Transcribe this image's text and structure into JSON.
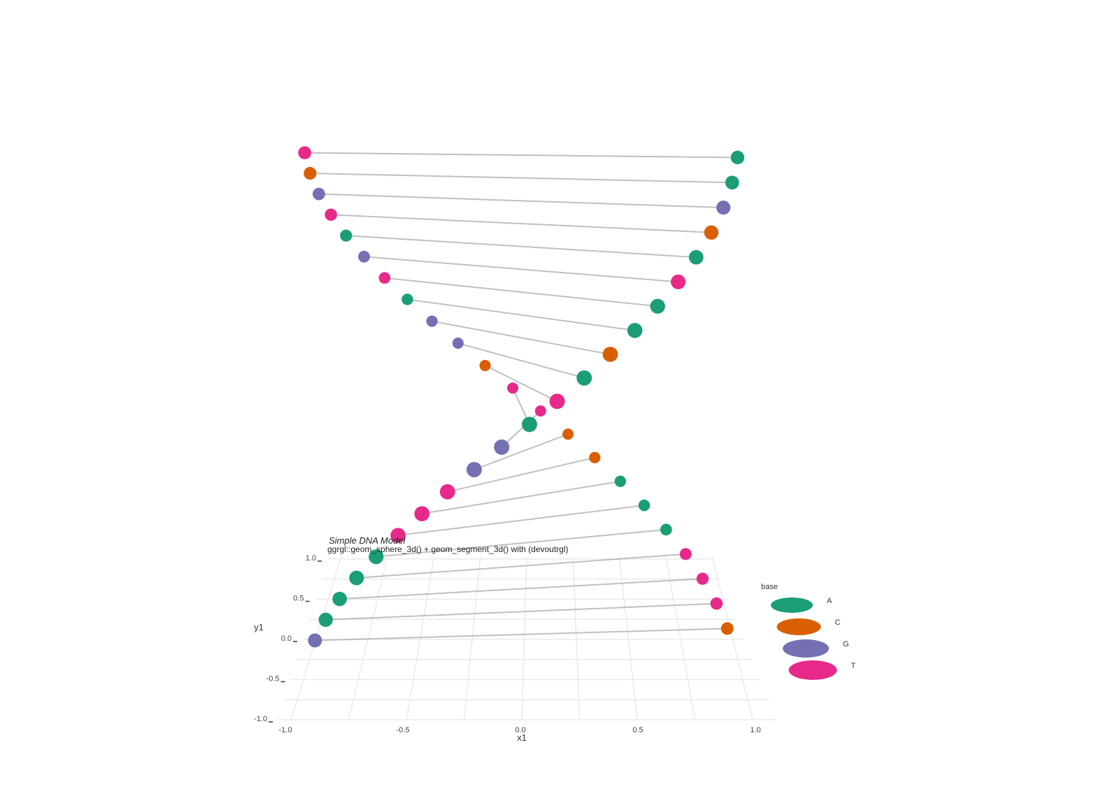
{
  "chart_data": {
    "type": "scatter",
    "title": "Simple DNA Model",
    "subtitle": "ggrgl::geom_sphere_3d() + geom_segment_3d() with (devoutrgl)",
    "xlabel": "x1",
    "ylabel": "y1",
    "xlim": [
      -1.0,
      1.0
    ],
    "ylim": [
      -1.0,
      1.0
    ],
    "x_ticks": [
      "-1.0",
      "-0.5",
      "0.0",
      "0.5",
      "1.0"
    ],
    "y_ticks": [
      "-1.0",
      "-0.5",
      "0.0",
      "0.5",
      "1.0"
    ],
    "grid": true,
    "legend": {
      "title": "base",
      "position": "right",
      "entries": [
        "A",
        "C",
        "G",
        "T"
      ]
    },
    "colors": {
      "A": "#1b9e77",
      "C": "#d95f02",
      "G": "#7570b3",
      "T": "#e7298a"
    },
    "pairs": [
      {
        "left": "T",
        "right": "A"
      },
      {
        "left": "C",
        "right": "A"
      },
      {
        "left": "G",
        "right": "G"
      },
      {
        "left": "T",
        "right": "C"
      },
      {
        "left": "A",
        "right": "A"
      },
      {
        "left": "G",
        "right": "T"
      },
      {
        "left": "T",
        "right": "A"
      },
      {
        "left": "A",
        "right": "A"
      },
      {
        "left": "G",
        "right": "C"
      },
      {
        "left": "G",
        "right": "A"
      },
      {
        "left": "C",
        "right": "T"
      },
      {
        "left": "T",
        "right": "A"
      },
      {
        "left": "T",
        "right": "G"
      },
      {
        "left": "C",
        "right": "G"
      },
      {
        "left": "C",
        "right": "T"
      },
      {
        "left": "A",
        "right": "T"
      },
      {
        "left": "A",
        "right": "T"
      },
      {
        "left": "A",
        "right": "A"
      },
      {
        "left": "T",
        "right": "A"
      },
      {
        "left": "T",
        "right": "A"
      },
      {
        "left": "T",
        "right": "A"
      },
      {
        "left": "C",
        "right": "G"
      }
    ]
  }
}
